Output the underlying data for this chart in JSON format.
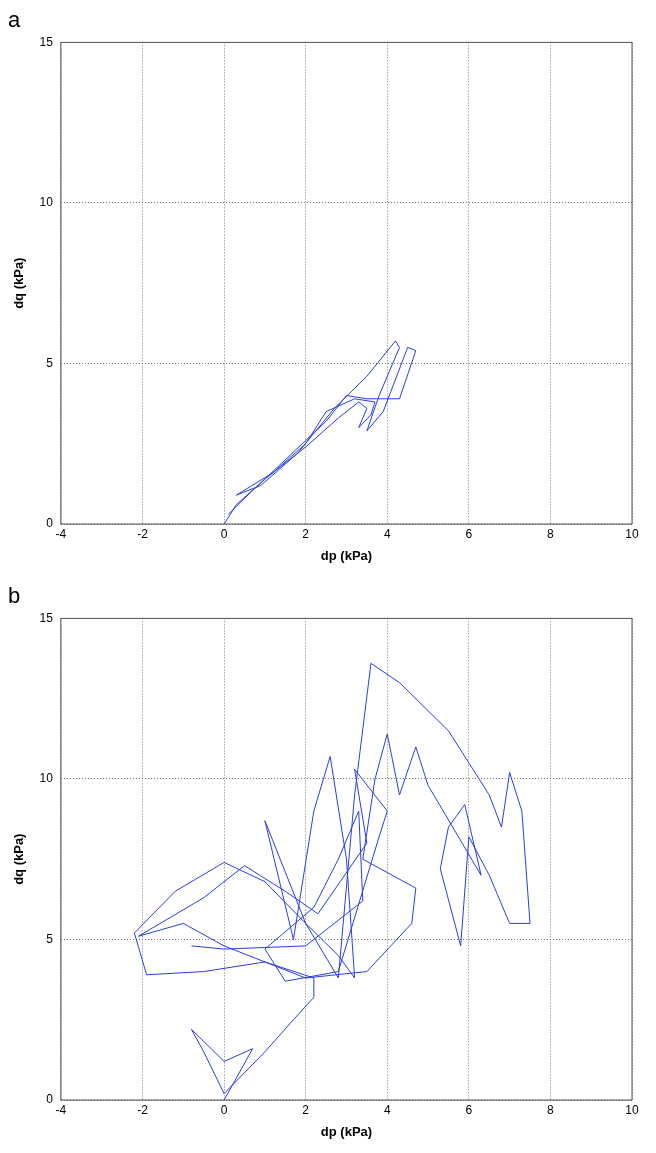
{
  "chart_data": [
    {
      "type": "line",
      "title": "a",
      "xlabel": "dp (kPa)",
      "ylabel": "dq (kPa)",
      "xlim": [
        -4,
        10
      ],
      "xticks": [
        -4,
        -2,
        0,
        2,
        4,
        6,
        8,
        10
      ],
      "ylim": [
        0,
        15
      ],
      "yticks": [
        0,
        5,
        10,
        15
      ],
      "grid": true,
      "legend": false,
      "marker": "none",
      "line_style": "solid",
      "series": [
        {
          "color": "#2a3fe0",
          "x": [
            0,
            0.3,
            1,
            2,
            2.8,
            3.3,
            3.5,
            3.3,
            3.6,
            3.7,
            3.2,
            2.5,
            2,
            1.2,
            0.3,
            0.9,
            1.8,
            2.7,
            3.5,
            4.2,
            4.3,
            3.8,
            3.5,
            3.9,
            4.5,
            4.7,
            4.3,
            3.5,
            3,
            2.5,
            2,
            1.5,
            1,
            0.5,
            0.1
          ],
          "values": [
            0,
            0.6,
            1.4,
            2.4,
            3.3,
            3.8,
            3.6,
            3,
            3.4,
            3.8,
            3.9,
            3.5,
            2.5,
            1.6,
            0.9,
            1.2,
            2.2,
            3.6,
            4.6,
            5.7,
            5.5,
            4,
            2.9,
            3.5,
            5.5,
            5.4,
            3.9,
            3.9,
            4,
            3.2,
            2.6,
            2,
            1.4,
            0.8,
            0.3
          ]
        }
      ]
    },
    {
      "type": "line",
      "title": "b",
      "xlabel": "dp (kPa)",
      "ylabel": "dq (kPa)",
      "xlim": [
        -4,
        10
      ],
      "xticks": [
        -4,
        -2,
        0,
        2,
        4,
        6,
        8,
        10
      ],
      "ylim": [
        0,
        15
      ],
      "yticks": [
        0,
        5,
        10,
        15
      ],
      "grid": true,
      "legend": false,
      "marker": "none",
      "line_style": "solid",
      "series": [
        {
          "color": "#2a3fe0",
          "x": [
            0,
            0.7,
            0,
            -0.8,
            -0.5,
            0,
            1,
            1.7,
            2.2,
            2.2,
            1,
            -0.5,
            -1.9,
            -2.2,
            -1.2,
            0,
            1,
            2,
            2.8,
            3.2,
            3,
            2.6,
            2.2,
            1.7,
            1,
            2,
            2.8,
            3.2,
            3.6,
            4.3,
            5.5,
            6.5,
            6.8,
            7,
            7.3,
            7.5,
            7,
            6.5,
            6,
            5.8,
            5.3,
            5.5,
            5.9,
            6.3,
            5,
            4.7,
            4.3,
            4,
            3.7,
            3.4,
            4.7,
            4.6,
            3.5,
            2,
            0,
            -1,
            -2.1,
            -0.5,
            0.5,
            1.5,
            2.3,
            3.5,
            3.2,
            4,
            3.8,
            2.8,
            1.5,
            1,
            2.2,
            2.8,
            3.3,
            3.4,
            2,
            0,
            -0.8
          ],
          "values": [
            0,
            1.6,
            1.2,
            2.2,
            1.5,
            0.2,
            1.5,
            2.5,
            3.2,
            3.8,
            4.3,
            4,
            3.9,
            5.2,
            6.5,
            7.4,
            6.8,
            5.5,
            4.5,
            3.8,
            7.5,
            10.7,
            9,
            5,
            8.7,
            5.5,
            3.8,
            9.5,
            13.6,
            13,
            11.5,
            9.5,
            8.5,
            10.2,
            9,
            5.5,
            5.5,
            7,
            8.2,
            4.8,
            7.2,
            8.5,
            9.2,
            7,
            9.8,
            11,
            9.5,
            11.4,
            10,
            7.5,
            6.6,
            5.5,
            4,
            3.8,
            4.8,
            5.5,
            5.1,
            6.3,
            7.3,
            6.5,
            5.8,
            8,
            10.3,
            9,
            8.2,
            4,
            3.7,
            4.7,
            6,
            7.5,
            9,
            6.2,
            4.8,
            4.7,
            4.8
          ]
        }
      ]
    }
  ]
}
